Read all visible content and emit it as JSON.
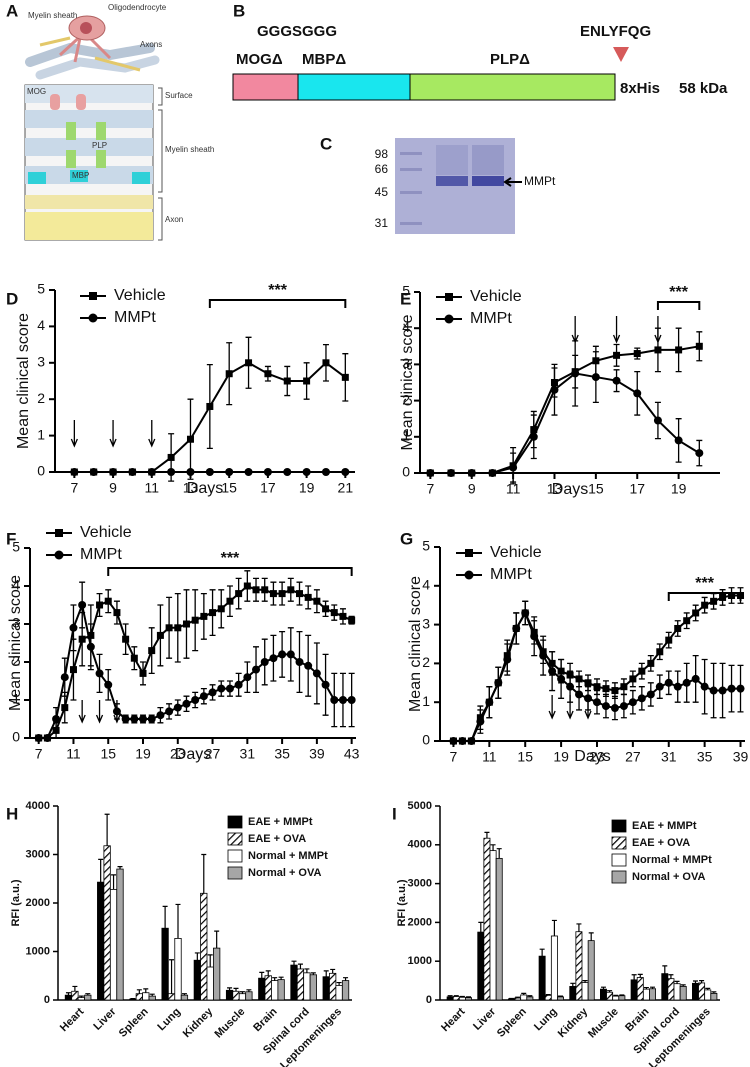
{
  "panels": [
    "A",
    "B",
    "C",
    "D",
    "E",
    "F",
    "G",
    "H",
    "I"
  ],
  "panel_a": {
    "top_labels": [
      "Myelin sheath",
      "Oligodendrocyte",
      "Axons"
    ],
    "inner_labels": [
      "MOG",
      "PLP",
      "MBP"
    ],
    "side_labels": [
      "Surface",
      "Myelin sheath",
      "Axon"
    ]
  },
  "panel_b": {
    "linker": "GGGSGGG",
    "site": "ENLYFQG",
    "domains": [
      "MOGΔ",
      "MBPΔ",
      "PLPΔ"
    ],
    "tag": "8xHis",
    "mass": "58 kDa"
  },
  "panel_c": {
    "markers": [
      "98",
      "66",
      "45",
      "31"
    ],
    "band_label": "MMPt"
  },
  "chart_data": [
    {
      "type": "line",
      "xlabel": "Days",
      "ylabel": "Mean clinical score",
      "x": [
        7,
        8,
        9,
        10,
        11,
        12,
        13,
        14,
        15,
        16,
        17,
        18,
        19,
        20,
        21
      ],
      "xlim": [
        6,
        21.5
      ],
      "xticks": [
        7,
        9,
        11,
        13,
        15,
        17,
        19,
        21
      ],
      "ylim": [
        0,
        5
      ],
      "yticks": [
        0,
        1,
        2,
        3,
        4,
        5
      ],
      "series": [
        {
          "name": "Vehicle",
          "marker": "square",
          "color": "#000000",
          "values": [
            0,
            0,
            0,
            0,
            0,
            0.4,
            0.9,
            1.8,
            2.7,
            3.0,
            2.7,
            2.5,
            2.5,
            3.0,
            2.6
          ],
          "errors": [
            0,
            0,
            0,
            0,
            0,
            0.65,
            1.1,
            1.15,
            0.85,
            0.7,
            0.2,
            0.4,
            0.5,
            0.5,
            0.65
          ]
        },
        {
          "name": "MMPt",
          "marker": "circle",
          "color": "#000000",
          "values": [
            0,
            0,
            0,
            0,
            0,
            0,
            0,
            0,
            0,
            0,
            0,
            0,
            0,
            0,
            0
          ],
          "errors": [
            0,
            0,
            0,
            0,
            0,
            0,
            0,
            0,
            0,
            0,
            0,
            0,
            0,
            0,
            0
          ]
        }
      ],
      "arrows": [
        7,
        9,
        11
      ],
      "significance": {
        "text": "***",
        "x": [
          14,
          21
        ]
      }
    },
    {
      "type": "line",
      "xlabel": "Days",
      "ylabel": "Mean clinical score",
      "x": [
        7,
        8,
        9,
        10,
        11,
        12,
        13,
        14,
        15,
        16,
        17,
        18,
        19,
        20
      ],
      "xlim": [
        6.5,
        21
      ],
      "xticks": [
        7,
        9,
        11,
        13,
        15,
        17,
        19
      ],
      "ylim": [
        0,
        5
      ],
      "yticks": [
        0,
        1,
        2,
        3,
        4,
        5
      ],
      "series": [
        {
          "name": "Vehicle",
          "marker": "square",
          "color": "#000000",
          "values": [
            0,
            0,
            0,
            0,
            0.2,
            1.2,
            2.5,
            2.8,
            3.1,
            3.25,
            3.3,
            3.4,
            3.4,
            3.5
          ],
          "errors": [
            0,
            0,
            0,
            0,
            0.5,
            0.5,
            0.4,
            0.45,
            0.4,
            0.3,
            0.15,
            0.6,
            0.6,
            0.4
          ]
        },
        {
          "name": "MMPt",
          "marker": "circle",
          "color": "#000000",
          "values": [
            0,
            0,
            0,
            0,
            0.15,
            1.0,
            2.3,
            2.75,
            2.65,
            2.55,
            2.2,
            1.45,
            0.9,
            0.55
          ],
          "errors": [
            0,
            0,
            0,
            0,
            0.4,
            0.6,
            0.7,
            0.9,
            0.7,
            0.3,
            0.6,
            0.5,
            0.6,
            0.35
          ]
        }
      ],
      "arrows": [
        14,
        16,
        18
      ],
      "significance": {
        "text": "***",
        "x": [
          18,
          20
        ]
      }
    },
    {
      "type": "line",
      "xlabel": "Days",
      "ylabel": "Mean clinical score",
      "x": [
        7,
        8,
        9,
        10,
        11,
        12,
        13,
        14,
        15,
        16,
        17,
        18,
        19,
        20,
        21,
        22,
        23,
        24,
        25,
        26,
        27,
        28,
        29,
        30,
        31,
        32,
        33,
        34,
        35,
        36,
        37,
        38,
        39,
        40,
        41,
        42,
        43
      ],
      "xlim": [
        6,
        43.5
      ],
      "xticks": [
        7,
        11,
        15,
        19,
        23,
        27,
        31,
        35,
        39,
        43
      ],
      "ylim": [
        0,
        5
      ],
      "yticks": [
        0,
        1,
        2,
        3,
        4,
        5
      ],
      "series": [
        {
          "name": "Vehicle",
          "marker": "square",
          "color": "#000000",
          "values": [
            0,
            0,
            0.2,
            0.8,
            1.8,
            2.6,
            2.7,
            3.5,
            3.6,
            3.3,
            2.6,
            2.1,
            1.7,
            2.3,
            2.7,
            2.9,
            2.9,
            3.0,
            3.1,
            3.2,
            3.3,
            3.4,
            3.6,
            3.8,
            4.0,
            3.9,
            3.9,
            3.8,
            3.8,
            3.9,
            3.8,
            3.7,
            3.6,
            3.4,
            3.3,
            3.2,
            3.1
          ],
          "errors": [
            0,
            0,
            0.2,
            0.4,
            0.8,
            0.7,
            0.8,
            0.3,
            0.3,
            0.3,
            0.4,
            0.3,
            0.3,
            0.6,
            0.8,
            0.8,
            0.9,
            0.9,
            0.8,
            0.6,
            0.6,
            0.5,
            0.4,
            0.4,
            0.4,
            0.3,
            0.3,
            0.3,
            0.3,
            0.3,
            0.3,
            0.3,
            0.3,
            0.2,
            0.2,
            0.2,
            0.1
          ]
        },
        {
          "name": "MMPt",
          "marker": "circle",
          "color": "#000000",
          "values": [
            0,
            0,
            0.5,
            1.6,
            2.9,
            3.5,
            2.4,
            1.7,
            1.4,
            0.7,
            0.5,
            0.5,
            0.5,
            0.5,
            0.6,
            0.7,
            0.8,
            0.9,
            1.0,
            1.1,
            1.2,
            1.3,
            1.3,
            1.4,
            1.6,
            1.8,
            2.0,
            2.1,
            2.2,
            2.2,
            2.0,
            1.9,
            1.7,
            1.4,
            1.0,
            1.0,
            1.0
          ],
          "errors": [
            0,
            0,
            0.3,
            0.5,
            0.6,
            0.6,
            0.6,
            0.5,
            0.4,
            0.2,
            0.1,
            0.1,
            0.1,
            0.1,
            0.2,
            0.2,
            0.2,
            0.2,
            0.2,
            0.2,
            0.2,
            0.2,
            0.2,
            0.3,
            0.4,
            0.6,
            0.6,
            0.6,
            0.6,
            0.7,
            0.8,
            0.8,
            0.8,
            0.8,
            0.7,
            0.7,
            0.7
          ]
        }
      ],
      "arrows": [
        12,
        14,
        16
      ],
      "significance": {
        "text": "***",
        "x": [
          15,
          43
        ]
      }
    },
    {
      "type": "line",
      "xlabel": "Days",
      "ylabel": "Mean clinical score",
      "x": [
        7,
        8,
        9,
        10,
        11,
        12,
        13,
        14,
        15,
        16,
        17,
        18,
        19,
        20,
        21,
        22,
        23,
        24,
        25,
        26,
        27,
        28,
        29,
        30,
        31,
        32,
        33,
        34,
        35,
        36,
        37,
        38,
        39
      ],
      "xlim": [
        5.5,
        39.5
      ],
      "xticks": [
        7,
        11,
        15,
        19,
        23,
        27,
        31,
        35,
        39
      ],
      "ylim": [
        0,
        5
      ],
      "yticks": [
        0,
        1,
        2,
        3,
        4,
        5
      ],
      "series": [
        {
          "name": "Vehicle",
          "marker": "square",
          "color": "#000000",
          "values": [
            0,
            0,
            0,
            0.6,
            1.0,
            1.5,
            2.2,
            2.9,
            3.3,
            2.8,
            2.3,
            2.0,
            1.8,
            1.7,
            1.6,
            1.5,
            1.4,
            1.35,
            1.3,
            1.4,
            1.6,
            1.8,
            2.0,
            2.3,
            2.6,
            2.9,
            3.1,
            3.3,
            3.5,
            3.6,
            3.7,
            3.75,
            3.75
          ],
          "errors": [
            0,
            0,
            0,
            0.3,
            0.4,
            0.4,
            0.4,
            0.4,
            0.3,
            0.3,
            0.3,
            0.3,
            0.3,
            0.3,
            0.2,
            0.2,
            0.2,
            0.2,
            0.2,
            0.2,
            0.2,
            0.2,
            0.2,
            0.2,
            0.2,
            0.2,
            0.2,
            0.2,
            0.2,
            0.2,
            0.2,
            0.2,
            0.2
          ]
        },
        {
          "name": "MMPt",
          "marker": "circle",
          "color": "#000000",
          "values": [
            0,
            0,
            0,
            0.5,
            1.0,
            1.5,
            2.1,
            2.9,
            3.3,
            2.7,
            2.2,
            1.8,
            1.6,
            1.4,
            1.2,
            1.1,
            1.0,
            0.9,
            0.85,
            0.9,
            1.0,
            1.1,
            1.2,
            1.4,
            1.5,
            1.4,
            1.5,
            1.6,
            1.4,
            1.3,
            1.3,
            1.35,
            1.35
          ],
          "errors": [
            0,
            0,
            0,
            0.3,
            0.4,
            0.4,
            0.4,
            0.4,
            0.3,
            0.5,
            0.5,
            0.5,
            0.5,
            0.4,
            0.4,
            0.3,
            0.3,
            0.3,
            0.3,
            0.3,
            0.3,
            0.3,
            0.3,
            0.3,
            0.3,
            0.4,
            0.5,
            0.6,
            0.7,
            0.7,
            0.7,
            0.6,
            0.6
          ]
        }
      ],
      "arrows": [
        18,
        20,
        22
      ],
      "significance": {
        "text": "***",
        "x": [
          31,
          39
        ]
      }
    },
    {
      "type": "bar",
      "ylabel": "RFI (a.u.)",
      "categories": [
        "Heart",
        "Liver",
        "Spleen",
        "Lung",
        "Kidney",
        "Muscle",
        "Brain",
        "Spinal cord",
        "Leptomeninges"
      ],
      "ylim": [
        0,
        4000
      ],
      "yticks": [
        0,
        1000,
        2000,
        3000,
        4000
      ],
      "series": [
        {
          "name": "EAE + MMPt",
          "color": "#000000",
          "values": [
            100,
            2430,
            20,
            1480,
            820,
            200,
            450,
            720,
            480
          ],
          "errors": [
            50,
            470,
            10,
            450,
            150,
            50,
            120,
            80,
            120
          ]
        },
        {
          "name": "EAE + OVA",
          "color": "#000000",
          "pattern": "hatch",
          "values": [
            180,
            3180,
            130,
            130,
            2200,
            180,
            500,
            640,
            550
          ],
          "errors": [
            100,
            650,
            80,
            700,
            800,
            60,
            100,
            100,
            80
          ]
        },
        {
          "name": "Normal + MMPt",
          "color": "#ffffff",
          "values": [
            50,
            2280,
            150,
            1270,
            680,
            130,
            400,
            560,
            300
          ],
          "errors": [
            30,
            300,
            80,
            700,
            250,
            40,
            60,
            80,
            60
          ]
        },
        {
          "name": "Normal + OVA",
          "color": "#a6a6a6",
          "values": [
            100,
            2700,
            80,
            100,
            1070,
            170,
            420,
            520,
            400
          ],
          "errors": [
            30,
            50,
            40,
            30,
            350,
            40,
            50,
            40,
            60
          ]
        }
      ]
    },
    {
      "type": "bar",
      "ylabel": "RFI (a.u.)",
      "categories": [
        "Heart",
        "Liver",
        "Spleen",
        "Lung",
        "Kidney",
        "Muscle",
        "Brain",
        "Spinal cord",
        "Leptomeninges"
      ],
      "ylim": [
        0,
        5000
      ],
      "yticks": [
        0,
        1000,
        2000,
        3000,
        4000,
        5000
      ],
      "series": [
        {
          "name": "EAE + MMPt",
          "color": "#000000",
          "values": [
            80,
            1750,
            30,
            1130,
            350,
            280,
            520,
            680,
            430
          ],
          "errors": [
            30,
            250,
            10,
            180,
            80,
            50,
            130,
            200,
            60
          ]
        },
        {
          "name": "EAE + OVA",
          "color": "#000000",
          "pattern": "hatch",
          "values": [
            90,
            4170,
            50,
            120,
            1760,
            200,
            580,
            550,
            440
          ],
          "errors": [
            20,
            150,
            20,
            20,
            200,
            40,
            80,
            100,
            60
          ]
        },
        {
          "name": "Normal + MMPt",
          "color": "#ffffff",
          "values": [
            70,
            3850,
            130,
            1650,
            450,
            100,
            280,
            420,
            260
          ],
          "errors": [
            20,
            150,
            40,
            400,
            50,
            20,
            40,
            60,
            40
          ]
        },
        {
          "name": "Normal + OVA",
          "color": "#a6a6a6",
          "values": [
            60,
            3650,
            80,
            80,
            1530,
            110,
            290,
            350,
            170
          ],
          "errors": [
            20,
            250,
            30,
            20,
            200,
            20,
            40,
            40,
            40
          ]
        }
      ]
    }
  ]
}
